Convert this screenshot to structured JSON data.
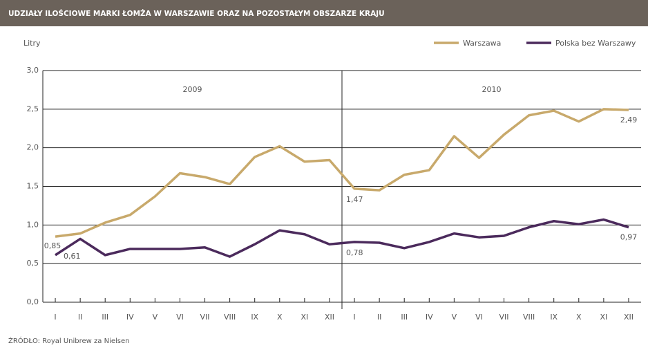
{
  "chart_data": {
    "type": "line",
    "title": "UDZIAŁY ILOŚCIOWE MARKI ŁOMŻA W  WARSZAWIE ORAZ NA POZOSTAŁYM OBSZARZE KRAJU",
    "y_label": "Litry",
    "source": "ŹRÓDŁO: Royal Unibrew za Nielsen",
    "annotations": [
      "2009",
      "2010"
    ],
    "categories": [
      "I",
      "II",
      "III",
      "IV",
      "V",
      "VI",
      "VII",
      "VIII",
      "IX",
      "X",
      "XI",
      "XII",
      "I",
      "II",
      "III",
      "IV",
      "V",
      "VI",
      "VII",
      "VIII",
      "IX",
      "X",
      "XI",
      "XII"
    ],
    "series": [
      {
        "name": "Warszawa",
        "color": "#c8a96b",
        "values": [
          0.85,
          0.89,
          1.03,
          1.13,
          1.37,
          1.67,
          1.62,
          1.53,
          1.88,
          2.02,
          1.82,
          1.84,
          1.47,
          1.45,
          1.65,
          1.71,
          2.15,
          1.87,
          2.17,
          2.42,
          2.48,
          2.34,
          2.5,
          2.49
        ],
        "value_labels": [
          "0,85",
          null,
          null,
          null,
          null,
          null,
          null,
          null,
          null,
          null,
          null,
          null,
          "1,47",
          null,
          null,
          null,
          null,
          null,
          null,
          null,
          null,
          null,
          null,
          "2,49"
        ]
      },
      {
        "name": "Polska bez Warszawy",
        "color": "#4b2a5c",
        "values": [
          0.61,
          0.82,
          0.61,
          0.69,
          0.69,
          0.69,
          0.71,
          0.59,
          0.75,
          0.93,
          0.88,
          0.75,
          0.78,
          0.77,
          0.7,
          0.78,
          0.89,
          0.84,
          0.86,
          0.97,
          1.05,
          1.01,
          1.07,
          0.97
        ],
        "value_labels": [
          "0,61",
          null,
          null,
          null,
          null,
          null,
          null,
          null,
          null,
          null,
          null,
          null,
          "0,78",
          null,
          null,
          null,
          null,
          null,
          null,
          null,
          null,
          null,
          null,
          "0,97"
        ]
      }
    ],
    "ylim": [
      0,
      3
    ],
    "yticks": [
      {
        "value": 0,
        "label": "0,0"
      },
      {
        "value": 0.5,
        "label": "0,5"
      },
      {
        "value": 1,
        "label": "1,0"
      },
      {
        "value": 1.5,
        "label": "1,5"
      },
      {
        "value": 2,
        "label": "2,0"
      },
      {
        "value": 2.5,
        "label": "2,5"
      },
      {
        "value": 3,
        "label": "3,0"
      }
    ],
    "grid": true,
    "legend": "top-right"
  }
}
